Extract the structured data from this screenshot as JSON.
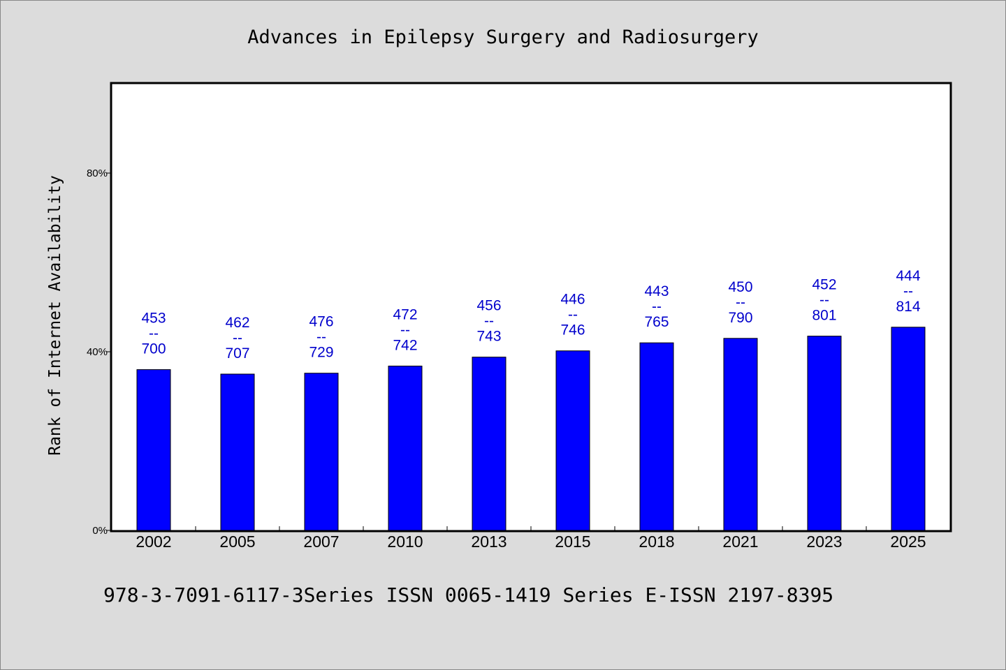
{
  "chart_data": {
    "type": "bar",
    "title": "Advances in Epilepsy Surgery and Radiosurgery",
    "xlabel": "",
    "ylabel": "Rank of Internet Availability",
    "categories": [
      "2002",
      "2005",
      "2007",
      "2010",
      "2013",
      "2015",
      "2018",
      "2021",
      "2023",
      "2025"
    ],
    "values": [
      36,
      35,
      35.2,
      36.8,
      38.8,
      40.2,
      42,
      43,
      43.5,
      45.5
    ],
    "labels_top": [
      "453",
      "462",
      "476",
      "472",
      "456",
      "446",
      "443",
      "450",
      "452",
      "444"
    ],
    "label_separator": "--",
    "labels_bottom": [
      "700",
      "707",
      "729",
      "742",
      "743",
      "746",
      "765",
      "790",
      "801",
      "814"
    ],
    "ylim": [
      0,
      100
    ],
    "yticks": [
      {
        "value": 0,
        "label": "0%"
      },
      {
        "value": 40,
        "label": "40%"
      },
      {
        "value": 80,
        "label": "80%"
      }
    ],
    "grid": false,
    "legend": "none",
    "footer": "978-3-7091-6117-3Series ISSN 0065-1419 Series E-ISSN 2197-8395",
    "colors": {
      "background": "#dcdcdc",
      "plot_background": "#ffffff",
      "bar": "#0000ff",
      "value_label": "#0000cc",
      "axis": "#000000"
    }
  }
}
